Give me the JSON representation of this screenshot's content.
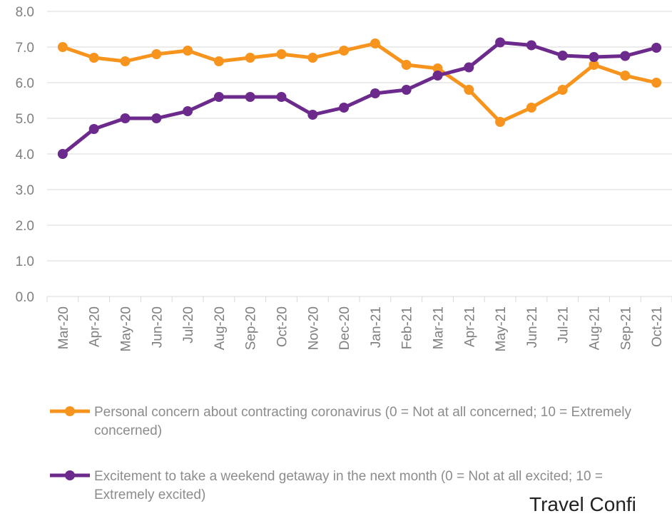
{
  "chart_data": {
    "type": "line",
    "categories": [
      "Mar-20",
      "Apr-20",
      "May-20",
      "Jun-20",
      "Jul-20",
      "Aug-20",
      "Sep-20",
      "Oct-20",
      "Nov-20",
      "Dec-20",
      "Jan-21",
      "Feb-21",
      "Mar-21",
      "Apr-21",
      "May-21",
      "Jun-21",
      "Jul-21",
      "Aug-21",
      "Sep-21",
      "Oct-21"
    ],
    "series": [
      {
        "name": "Personal concern about contracting coronavirus (0 = Not at all concerned; 10 = Extremely concerned)",
        "color": "#f7941d",
        "values": [
          7.0,
          6.7,
          6.6,
          6.8,
          6.9,
          6.6,
          6.7,
          6.8,
          6.7,
          6.9,
          7.1,
          6.5,
          6.4,
          5.8,
          4.9,
          5.3,
          5.8,
          6.5,
          6.2,
          6.0
        ]
      },
      {
        "name": "Excitement to take a weekend getaway in the next month (0 = Not at all excited; 10 = Extremely excited)",
        "color": "#6c2a8c",
        "values": [
          4.0,
          4.7,
          5.0,
          5.0,
          5.2,
          5.6,
          5.6,
          5.6,
          5.1,
          5.3,
          5.7,
          5.8,
          6.2,
          6.43,
          7.13,
          7.05,
          6.76,
          6.72,
          6.75,
          6.98
        ]
      }
    ],
    "y_ticks": [
      "0.0",
      "1.0",
      "2.0",
      "3.0",
      "4.0",
      "5.0",
      "6.0",
      "7.0",
      "8.0"
    ],
    "ylim": [
      0,
      8
    ],
    "grid": true,
    "legend_position": "bottom"
  },
  "footer": {
    "title": "Travel Confi"
  }
}
